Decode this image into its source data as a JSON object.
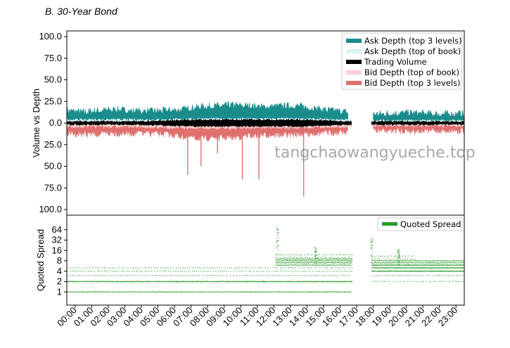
{
  "figure": {
    "panel_title": "B.   30-Year Bond",
    "watermark": "tangchaowangyueche.top"
  },
  "chart_data": [
    {
      "type": "area",
      "ylabel": "Volume vs Depth",
      "xlabel": "",
      "yticks": [
        "100.0",
        "75.0",
        "50.0",
        "25.0",
        "0.0",
        "25.0",
        "50.0",
        "75.0",
        "100.0"
      ],
      "ylim": [
        -100,
        100
      ],
      "xlim": [
        0,
        24
      ],
      "legend_position": "top-right",
      "series": [
        {
          "name": "Ask Depth (top 3 levels)",
          "color": "#1a8c8c",
          "x": [
            0,
            1,
            2,
            3,
            4,
            5,
            6,
            7,
            8,
            9,
            10,
            11,
            12,
            13,
            14,
            15,
            16,
            17,
            18,
            18.5,
            19,
            20,
            21,
            22,
            23,
            24
          ],
          "y": [
            12,
            10,
            12,
            13,
            11,
            11,
            12,
            13,
            16,
            17,
            18,
            17,
            16,
            17,
            17,
            14,
            12,
            10,
            null,
            8,
            8,
            9,
            9,
            8,
            8,
            8
          ]
        },
        {
          "name": "Ask Depth (top of book)",
          "color": "#d8f4f4",
          "x": [
            0,
            2,
            4,
            6,
            8,
            10,
            12,
            14,
            16,
            17,
            18.5,
            20,
            22,
            24
          ],
          "y": [
            3,
            3,
            3,
            3,
            4,
            4,
            4,
            4,
            3,
            3,
            2,
            2,
            2,
            2
          ]
        },
        {
          "name": "Trading Volume",
          "color": "#000000",
          "x": [
            0,
            2,
            4,
            6,
            8,
            10,
            12,
            14,
            16,
            17,
            18.5,
            20,
            22,
            24
          ],
          "y": [
            1,
            1,
            1,
            2,
            3,
            3,
            3,
            3,
            2,
            1,
            1,
            1,
            1,
            1
          ]
        },
        {
          "name": "Bid Depth (top of book)",
          "color": "#f8d0d0",
          "x": [
            0,
            2,
            4,
            6,
            8,
            10,
            12,
            14,
            16,
            17,
            18.5,
            20,
            22,
            24
          ],
          "y": [
            -3,
            -3,
            -3,
            -4,
            -5,
            -5,
            -4,
            -4,
            -3,
            -3,
            -2,
            -2,
            -2,
            -2
          ]
        },
        {
          "name": "Bid Depth (top 3 levels)",
          "color": "#e07070",
          "x": [
            0,
            1,
            2,
            3,
            4,
            5,
            6,
            7,
            8,
            9,
            10,
            11,
            12,
            13,
            14,
            15,
            16,
            17,
            18,
            18.5,
            19,
            20,
            21,
            22,
            23,
            24
          ],
          "y": [
            -9,
            -10,
            -10,
            -9,
            -9,
            -9,
            -10,
            -13,
            -15,
            -14,
            -14,
            -12,
            -11,
            -11,
            -10,
            -9,
            -8,
            -7,
            null,
            -6,
            -6,
            -6,
            -6,
            -6,
            -6,
            -6
          ]
        }
      ],
      "spikes": [
        {
          "x": 7.3,
          "y": -60
        },
        {
          "x": 8.1,
          "y": -50
        },
        {
          "x": 10.6,
          "y": -65
        },
        {
          "x": 11.6,
          "y": -65
        },
        {
          "x": 14.3,
          "y": -85
        },
        {
          "x": 9.1,
          "y": -35
        }
      ],
      "gap": [
        17.2,
        18.4
      ]
    },
    {
      "type": "scatter",
      "ylabel": "Quoted Spread",
      "xlabel": "",
      "yscale": "log2",
      "yticks": [
        "1",
        "2",
        "4",
        "8",
        "16",
        "32",
        "64"
      ],
      "ytick_values": [
        1,
        2,
        4,
        8,
        16,
        32,
        64
      ],
      "ylim": [
        0.5,
        128
      ],
      "xlim": [
        0,
        24
      ],
      "legend_position": "top-right",
      "series": [
        {
          "name": "Quoted Spread",
          "color": "#2a9a2a",
          "bands": [
            {
              "x": [
                0,
                17.2
              ],
              "y": 2,
              "density": "dense"
            },
            {
              "x": [
                0,
                17.2
              ],
              "y": 1,
              "density": "medium"
            },
            {
              "x": [
                0,
                17.2
              ],
              "y": 4,
              "density": "sparse"
            },
            {
              "x": [
                0,
                17.2
              ],
              "y": 5,
              "density": "sparse"
            },
            {
              "x": [
                0,
                17.2
              ],
              "y": 3,
              "density": "sparse"
            },
            {
              "x": [
                12.6,
                17.2
              ],
              "y": 6,
              "density": "medium"
            },
            {
              "x": [
                12.6,
                17.2
              ],
              "y": 7,
              "density": "medium"
            },
            {
              "x": [
                12.6,
                17.2
              ],
              "y": 8,
              "density": "medium"
            },
            {
              "x": [
                12.6,
                17.2
              ],
              "y": 9,
              "density": "medium"
            },
            {
              "x": [
                12.6,
                17.2
              ],
              "y": 10,
              "density": "sparse"
            },
            {
              "x": [
                12.6,
                17.2
              ],
              "y": 12,
              "density": "sparse"
            },
            {
              "x": [
                18.4,
                24
              ],
              "y": 4,
              "density": "dense"
            },
            {
              "x": [
                18.4,
                24
              ],
              "y": 5,
              "density": "dense"
            },
            {
              "x": [
                18.4,
                24
              ],
              "y": 6,
              "density": "dense"
            },
            {
              "x": [
                18.4,
                24
              ],
              "y": 7,
              "density": "medium"
            },
            {
              "x": [
                18.4,
                24
              ],
              "y": 8,
              "density": "medium"
            },
            {
              "x": [
                18.4,
                24
              ],
              "y": 3,
              "density": "sparse"
            },
            {
              "x": [
                18.4,
                24
              ],
              "y": 2,
              "density": "sparse"
            },
            {
              "x": [
                18.4,
                21
              ],
              "y": 9,
              "density": "sparse"
            },
            {
              "x": [
                18.4,
                21
              ],
              "y": 11,
              "density": "sparse"
            }
          ],
          "vertical_bursts": [
            {
              "x": 12.7,
              "ymax": 80
            },
            {
              "x": 18.4,
              "ymax": 40
            },
            {
              "x": 20.0,
              "ymax": 18
            },
            {
              "x": 15.0,
              "ymax": 20
            }
          ]
        }
      ],
      "x_tick_labels": [
        "00:00",
        "01:00",
        "02:00",
        "03:00",
        "04:00",
        "05:00",
        "06:00",
        "07:00",
        "08:00",
        "09:00",
        "10:00",
        "11:00",
        "12:00",
        "13:00",
        "14:00",
        "15:00",
        "16:00",
        "17:00",
        "18:00",
        "19:00",
        "20:00",
        "21:00",
        "22:00",
        "23:00"
      ]
    }
  ]
}
